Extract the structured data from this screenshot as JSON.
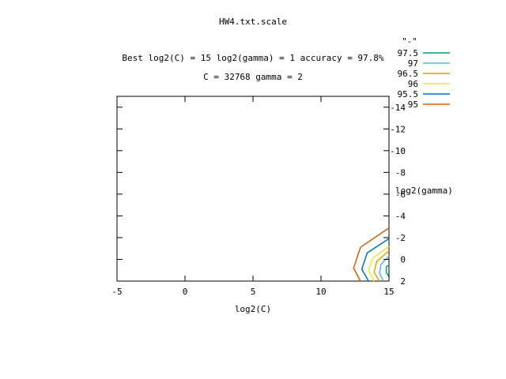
{
  "chart_data": {
    "type": "line",
    "title": "HW4.txt.scale",
    "subtitle_lines": [
      "Best log2(C) = 15  log2(gamma) = 1  accuracy = 97.8%",
      "C = 32768  gamma = 2"
    ],
    "xlabel": "log2(C)",
    "ylabel": "log2(gamma)",
    "xlim": [
      -5,
      15
    ],
    "ylim": [
      2,
      -15
    ],
    "x_ticks": [
      -5,
      0,
      5,
      10,
      15
    ],
    "y_ticks": [
      -14,
      -12,
      -10,
      -8,
      -6,
      -4,
      -2,
      0,
      2
    ],
    "legend_title": "\"-\"",
    "legend_position": "top-right",
    "series": [
      {
        "name": "97.5",
        "color": "#009e73",
        "points": [
          [
            15,
            0.5
          ],
          [
            14.8,
            0.7
          ],
          [
            14.8,
            1.2
          ],
          [
            15,
            1.6
          ]
        ]
      },
      {
        "name": "97",
        "color": "#56b4e9",
        "points": [
          [
            15,
            -0.3
          ],
          [
            14.4,
            0.5
          ],
          [
            14.3,
            1.3
          ],
          [
            14.6,
            2.0
          ]
        ]
      },
      {
        "name": "96.5",
        "color": "#e69f00",
        "points": [
          [
            15,
            -0.8
          ],
          [
            14.1,
            0.2
          ],
          [
            13.9,
            1.2
          ],
          [
            14.3,
            2.0
          ]
        ]
      },
      {
        "name": "96",
        "color": "#f0e442",
        "points": [
          [
            15,
            -1.2
          ],
          [
            13.8,
            -0.1
          ],
          [
            13.5,
            1.0
          ],
          [
            13.9,
            2.0
          ]
        ]
      },
      {
        "name": "95.5",
        "color": "#0072b2",
        "points": [
          [
            15,
            -1.9
          ],
          [
            13.4,
            -0.6
          ],
          [
            13.0,
            0.9
          ],
          [
            13.5,
            2.0
          ]
        ]
      },
      {
        "name": "95",
        "color": "#d55e00",
        "points": [
          [
            15,
            -2.9
          ],
          [
            12.9,
            -1.1
          ],
          [
            12.4,
            0.8
          ],
          [
            12.9,
            2.0
          ]
        ]
      }
    ]
  }
}
